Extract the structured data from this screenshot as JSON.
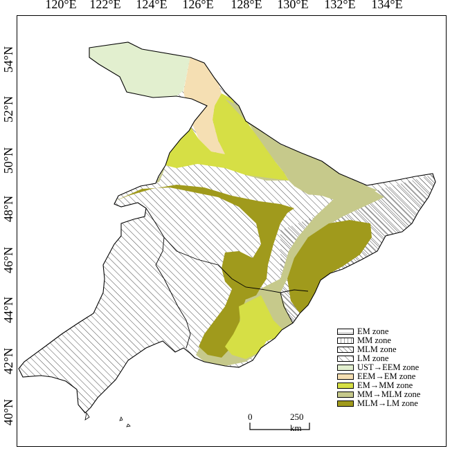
{
  "axes": {
    "longitudes": [
      "120°E",
      "122°E",
      "124°E",
      "126°E",
      "128°E",
      "130°E",
      "132°E",
      "134°E"
    ],
    "latitudes": [
      "54°N",
      "52°N",
      "50°N",
      "48°N",
      "46°N",
      "44°N",
      "42°N",
      "40°N"
    ]
  },
  "legend": [
    {
      "label": "EM zone",
      "pattern": "horizontal-hatch",
      "color": "#ffffff"
    },
    {
      "label": "MM zone",
      "pattern": "vertical-hatch",
      "color": "#ffffff"
    },
    {
      "label": "MLM zone",
      "pattern": "diagonal-hatch-dense",
      "color": "#ffffff"
    },
    {
      "label": "LM zone",
      "pattern": "diagonal-hatch-sparse",
      "color": "#ffffff"
    },
    {
      "label": "UST→EEM zone",
      "pattern": "solid",
      "color": "#e2efcf"
    },
    {
      "label": "EEM→EM zone",
      "pattern": "solid",
      "color": "#f5dfb3"
    },
    {
      "label": "EM→MM zone",
      "pattern": "solid",
      "color": "#d6df45"
    },
    {
      "label": "MM→MLM zone",
      "pattern": "solid",
      "color": "#c6c98b"
    },
    {
      "label": "MLM→LM zone",
      "pattern": "solid",
      "color": "#a09a1c"
    }
  ],
  "scale": {
    "start": "0",
    "end": "250 km"
  }
}
